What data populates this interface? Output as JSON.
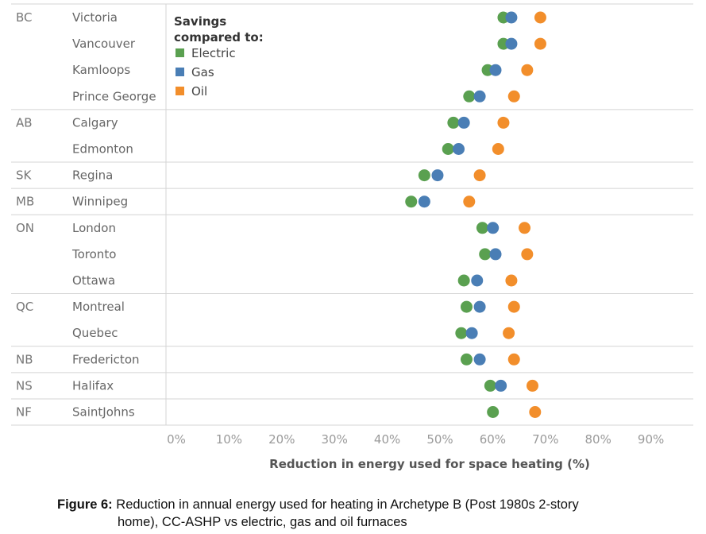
{
  "chart_data": {
    "type": "scatter",
    "xlabel": "Reduction in energy used for space heating (%)",
    "x_ticks": [
      "0%",
      "10%",
      "20%",
      "30%",
      "40%",
      "50%",
      "60%",
      "70%",
      "80%",
      "90%"
    ],
    "xlim": [
      0,
      100
    ],
    "grid": "horizontal separators between provinces",
    "legend": {
      "title_lines": [
        "Savings",
        "compared to:"
      ],
      "placement": "top-left of plot area",
      "entries": [
        {
          "name": "Electric",
          "color": "#5aa050"
        },
        {
          "name": "Gas",
          "color": "#4a7eb5"
        },
        {
          "name": "Oil",
          "color": "#f28e2b"
        }
      ]
    },
    "groups": [
      {
        "province": "BC",
        "cities": [
          "Victoria",
          "Vancouver",
          "Kamloops",
          "Prince George"
        ]
      },
      {
        "province": "AB",
        "cities": [
          "Calgary",
          "Edmonton"
        ]
      },
      {
        "province": "SK",
        "cities": [
          "Regina"
        ]
      },
      {
        "province": "MB",
        "cities": [
          "Winnipeg"
        ]
      },
      {
        "province": "ON",
        "cities": [
          "London",
          "Toronto",
          "Ottawa"
        ]
      },
      {
        "province": "QC",
        "cities": [
          "Montreal",
          "Quebec"
        ]
      },
      {
        "province": "NB",
        "cities": [
          "Fredericton"
        ]
      },
      {
        "province": "NS",
        "cities": [
          "Halifax"
        ]
      },
      {
        "province": "NF",
        "cities": [
          "SaintJohns"
        ]
      }
    ],
    "series": [
      {
        "name": "Electric",
        "color": "#5aa050",
        "values": [
          64,
          64,
          61,
          57.5,
          54.5,
          53.5,
          49,
          46.5,
          60,
          60.5,
          56.5,
          57,
          56,
          57,
          61.5,
          62
        ]
      },
      {
        "name": "Gas",
        "color": "#4a7eb5",
        "values": [
          65.5,
          65.5,
          62.5,
          59.5,
          56.5,
          55.5,
          51.5,
          49,
          62,
          62.5,
          59,
          59.5,
          58,
          59.5,
          63.5,
          null
        ]
      },
      {
        "name": "Oil",
        "color": "#f28e2b",
        "values": [
          71,
          71,
          68.5,
          66,
          64,
          63,
          59.5,
          57.5,
          68,
          68.5,
          65.5,
          66,
          65,
          66,
          69.5,
          70
        ]
      }
    ]
  },
  "caption": {
    "label": "Figure 6:",
    "line1": "Reduction in annual energy used for heating in Archetype B (Post 1980s  2-story",
    "line2": "home), CC-ASHP vs electric, gas and oil furnaces"
  }
}
